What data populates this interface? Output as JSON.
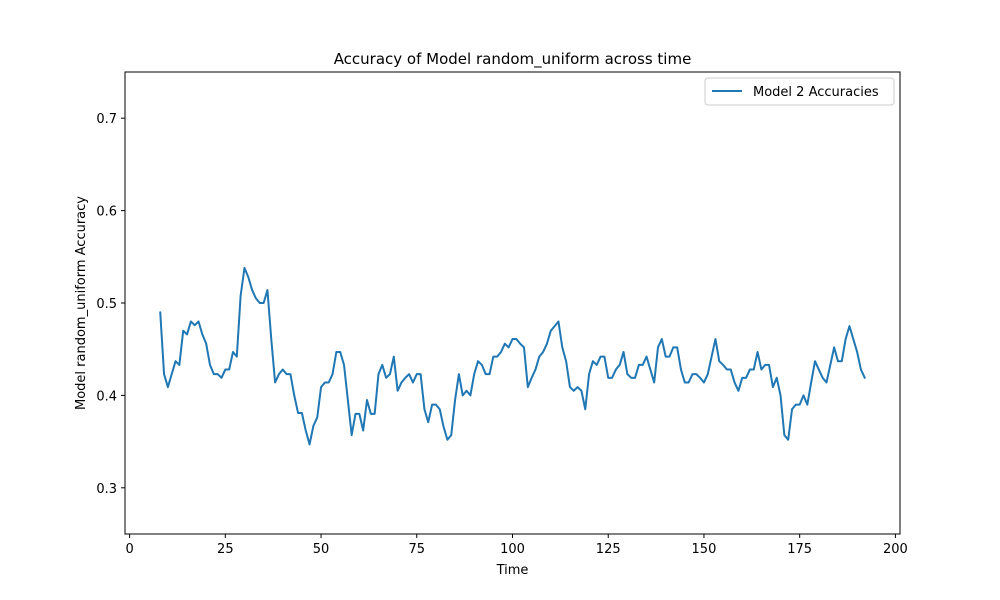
{
  "chart_data": {
    "type": "line",
    "title": "Accuracy of Model random_uniform across time",
    "xlabel": "Time",
    "ylabel": "Model random_uniform Accuracy",
    "xlim": [
      -1.2,
      201.2
    ],
    "ylim": [
      0.25,
      0.75
    ],
    "xticks": [
      0,
      25,
      50,
      75,
      100,
      125,
      150,
      175,
      200
    ],
    "yticks": [
      0.3,
      0.4,
      0.5,
      0.6,
      0.7
    ],
    "xtick_labels": [
      "0",
      "25",
      "50",
      "75",
      "100",
      "125",
      "150",
      "175",
      "200"
    ],
    "ytick_labels": [
      "0.3",
      "0.4",
      "0.5",
      "0.6",
      "0.7"
    ],
    "grid": false,
    "legend_position": "top-right",
    "series": [
      {
        "name": "Model 2 Accuracies",
        "color": "#1f77b4",
        "x": [
          8,
          9,
          10,
          11,
          12,
          13,
          14,
          15,
          16,
          17,
          18,
          19,
          20,
          21,
          22,
          23,
          24,
          25,
          26,
          27,
          28,
          29,
          30,
          31,
          32,
          33,
          34,
          35,
          36,
          37,
          38,
          39,
          40,
          41,
          42,
          43,
          44,
          45,
          46,
          47,
          48,
          49,
          50,
          51,
          52,
          53,
          54,
          55,
          56,
          57,
          58,
          59,
          60,
          61,
          62,
          63,
          64,
          65,
          66,
          67,
          68,
          69,
          70,
          71,
          72,
          73,
          74,
          75,
          76,
          77,
          78,
          79,
          80,
          81,
          82,
          83,
          84,
          85,
          86,
          87,
          88,
          89,
          90,
          91,
          92,
          93,
          94,
          95,
          96,
          97,
          98,
          99,
          100,
          101,
          102,
          103,
          104,
          105,
          106,
          107,
          108,
          109,
          110,
          111,
          112,
          113,
          114,
          115,
          116,
          117,
          118,
          119,
          120,
          121,
          122,
          123,
          124,
          125,
          126,
          127,
          128,
          129,
          130,
          131,
          132,
          133,
          134,
          135,
          136,
          137,
          138,
          139,
          140,
          141,
          142,
          143,
          144,
          145,
          146,
          147,
          148,
          149,
          150,
          151,
          152,
          153,
          154,
          155,
          156,
          157,
          158,
          159,
          160,
          161,
          162,
          163,
          164,
          165,
          166,
          167,
          168,
          169,
          170,
          171,
          172,
          173,
          174,
          175,
          176,
          177,
          178,
          179,
          180,
          181,
          182,
          183,
          184,
          185,
          186,
          187,
          188,
          189,
          190,
          191,
          192
        ],
        "values": [
          0.49,
          0.423,
          0.409,
          0.423,
          0.437,
          0.433,
          0.47,
          0.466,
          0.48,
          0.476,
          0.48,
          0.466,
          0.456,
          0.433,
          0.423,
          0.423,
          0.419,
          0.428,
          0.428,
          0.447,
          0.442,
          0.508,
          0.538,
          0.528,
          0.514,
          0.505,
          0.5,
          0.5,
          0.514,
          0.461,
          0.414,
          0.423,
          0.428,
          0.423,
          0.423,
          0.4,
          0.381,
          0.381,
          0.362,
          0.347,
          0.367,
          0.376,
          0.409,
          0.414,
          0.414,
          0.423,
          0.447,
          0.447,
          0.433,
          0.395,
          0.357,
          0.38,
          0.38,
          0.362,
          0.395,
          0.38,
          0.38,
          0.423,
          0.433,
          0.419,
          0.423,
          0.442,
          0.405,
          0.414,
          0.419,
          0.423,
          0.414,
          0.423,
          0.423,
          0.385,
          0.371,
          0.39,
          0.39,
          0.385,
          0.366,
          0.352,
          0.357,
          0.395,
          0.423,
          0.4,
          0.405,
          0.4,
          0.423,
          0.437,
          0.433,
          0.423,
          0.423,
          0.442,
          0.442,
          0.447,
          0.456,
          0.452,
          0.461,
          0.461,
          0.456,
          0.452,
          0.409,
          0.419,
          0.428,
          0.442,
          0.447,
          0.456,
          0.47,
          0.475,
          0.48,
          0.452,
          0.437,
          0.409,
          0.405,
          0.409,
          0.405,
          0.385,
          0.423,
          0.437,
          0.433,
          0.442,
          0.442,
          0.419,
          0.419,
          0.428,
          0.433,
          0.447,
          0.423,
          0.419,
          0.419,
          0.433,
          0.433,
          0.442,
          0.428,
          0.414,
          0.452,
          0.461,
          0.442,
          0.442,
          0.452,
          0.452,
          0.428,
          0.414,
          0.414,
          0.423,
          0.423,
          0.419,
          0.414,
          0.423,
          0.442,
          0.461,
          0.437,
          0.433,
          0.428,
          0.428,
          0.414,
          0.405,
          0.419,
          0.419,
          0.428,
          0.428,
          0.447,
          0.428,
          0.433,
          0.433,
          0.409,
          0.419,
          0.4,
          0.357,
          0.352,
          0.385,
          0.39,
          0.39,
          0.4,
          0.39,
          0.414,
          0.437,
          0.428,
          0.419,
          0.414,
          0.433,
          0.452,
          0.437,
          0.437,
          0.461,
          0.475,
          0.461,
          0.447,
          0.428,
          0.419
        ]
      }
    ]
  }
}
